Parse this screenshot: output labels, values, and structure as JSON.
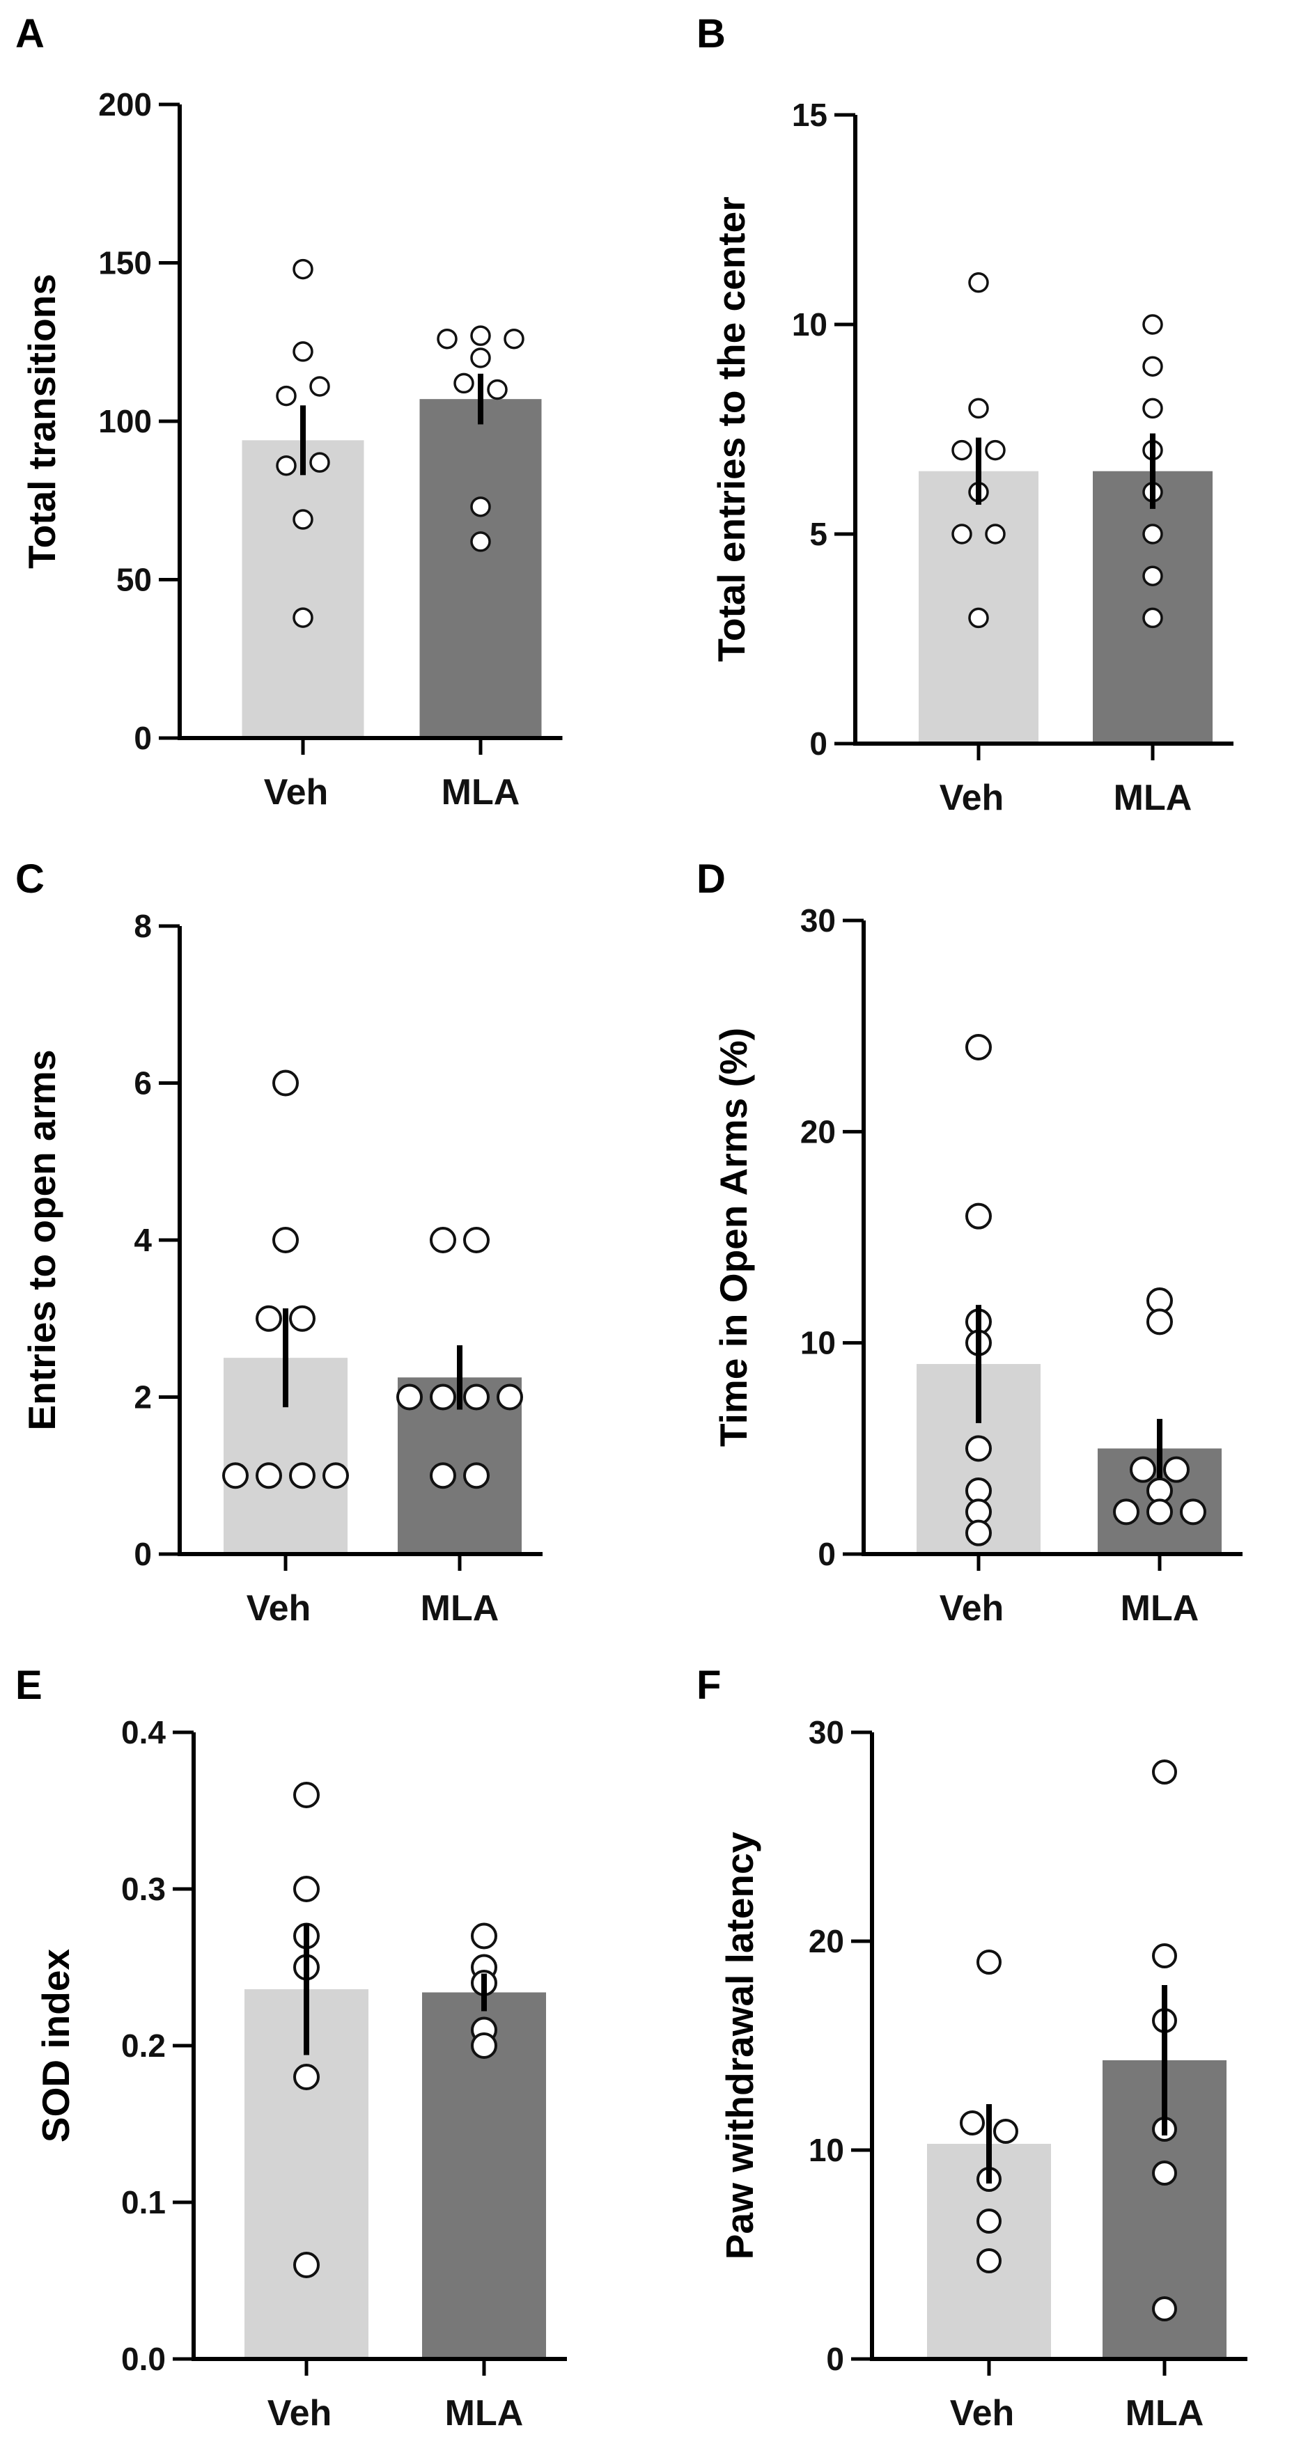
{
  "colors": {
    "bar_veh": "#d4d4d4",
    "bar_mla": "#787878",
    "axis": "#000000",
    "point_stroke": "#111111"
  },
  "chart_data": [
    {
      "panel": "A",
      "type": "bar",
      "xlabel": "",
      "ylabel": "Total transitions",
      "ylim": [
        0,
        200
      ],
      "yticks": [
        0,
        50,
        100,
        150,
        200
      ],
      "categories": [
        "Veh",
        "MLA"
      ],
      "values": [
        94,
        107
      ],
      "sem": [
        11,
        8
      ],
      "points": [
        [
          148,
          122,
          108,
          111,
          86,
          87,
          69,
          38
        ],
        [
          126,
          127,
          126,
          120,
          112,
          110,
          73,
          62
        ]
      ]
    },
    {
      "panel": "B",
      "type": "bar",
      "xlabel": "",
      "ylabel": "Total entries to the center",
      "ylim": [
        0,
        15
      ],
      "yticks": [
        0,
        5,
        10,
        15
      ],
      "categories": [
        "Veh",
        "MLA"
      ],
      "values": [
        6.5,
        6.5
      ],
      "sem": [
        0.8,
        0.9
      ],
      "points": [
        [
          11,
          8,
          7,
          7,
          6,
          5,
          5,
          3
        ],
        [
          10,
          9,
          8,
          7,
          6,
          5,
          4,
          3
        ]
      ]
    },
    {
      "panel": "C",
      "type": "bar",
      "xlabel": "",
      "ylabel": "Entries to open arms",
      "ylim": [
        0,
        8
      ],
      "yticks": [
        0,
        2,
        4,
        6,
        8
      ],
      "categories": [
        "Veh",
        "MLA"
      ],
      "values": [
        2.5,
        2.25
      ],
      "sem": [
        0.63,
        0.41
      ],
      "points": [
        [
          6,
          4,
          3,
          3,
          1,
          1,
          1,
          1
        ],
        [
          4,
          4,
          2,
          2,
          2,
          2,
          1,
          1
        ]
      ]
    },
    {
      "panel": "D",
      "type": "bar",
      "xlabel": "",
      "ylabel": "Time in Open Arms (%)",
      "ylim": [
        0,
        30
      ],
      "yticks": [
        0,
        10,
        20,
        30
      ],
      "categories": [
        "Veh",
        "MLA"
      ],
      "values": [
        9,
        5
      ],
      "sem": [
        2.8,
        1.4
      ],
      "points": [
        [
          24,
          16,
          11,
          10,
          5,
          3,
          2,
          1
        ],
        [
          12,
          11,
          4,
          4,
          3,
          2,
          2,
          2
        ]
      ]
    },
    {
      "panel": "E",
      "type": "bar",
      "xlabel": "",
      "ylabel": "SOD index",
      "ylim": [
        0,
        0.4
      ],
      "yticks": [
        "0.0",
        "0.1",
        "0.2",
        "0.3",
        "0.4"
      ],
      "categories": [
        "Veh",
        "MLA"
      ],
      "values": [
        0.236,
        0.234
      ],
      "sem": [
        0.042,
        0.012
      ],
      "points": [
        [
          0.36,
          0.3,
          0.27,
          0.25,
          0.18,
          0.06
        ],
        [
          0.27,
          0.25,
          0.24,
          0.21,
          0.2
        ]
      ]
    },
    {
      "panel": "F",
      "type": "bar",
      "xlabel": "",
      "ylabel": "Paw withdrawal latency",
      "ylim": [
        0,
        30
      ],
      "yticks": [
        0,
        10,
        20,
        30
      ],
      "categories": [
        "Veh",
        "MLA"
      ],
      "values": [
        10.3,
        14.3
      ],
      "sem": [
        1.9,
        3.6
      ],
      "points": [
        [
          19,
          11.3,
          10.9,
          8.6,
          6.6,
          4.7
        ],
        [
          28.1,
          19.3,
          16.2,
          11,
          8.9,
          2.4
        ]
      ]
    }
  ]
}
